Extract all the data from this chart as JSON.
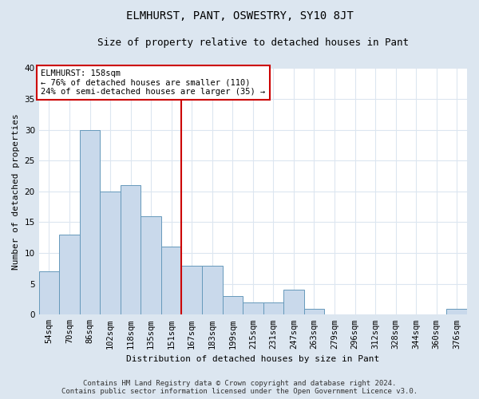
{
  "title": "ELMHURST, PANT, OSWESTRY, SY10 8JT",
  "subtitle": "Size of property relative to detached houses in Pant",
  "xlabel": "Distribution of detached houses by size in Pant",
  "ylabel": "Number of detached properties",
  "footer_line1": "Contains HM Land Registry data © Crown copyright and database right 2024.",
  "footer_line2": "Contains public sector information licensed under the Open Government Licence v3.0.",
  "annotation_title": "ELMHURST: 158sqm",
  "annotation_line2": "← 76% of detached houses are smaller (110)",
  "annotation_line3": "24% of semi-detached houses are larger (35) →",
  "bar_labels": [
    "54sqm",
    "70sqm",
    "86sqm",
    "102sqm",
    "118sqm",
    "135sqm",
    "151sqm",
    "167sqm",
    "183sqm",
    "199sqm",
    "215sqm",
    "231sqm",
    "247sqm",
    "263sqm",
    "279sqm",
    "296sqm",
    "312sqm",
    "328sqm",
    "344sqm",
    "360sqm",
    "376sqm"
  ],
  "bar_values": [
    7,
    13,
    30,
    20,
    21,
    16,
    11,
    8,
    8,
    3,
    2,
    2,
    4,
    1,
    0,
    0,
    0,
    0,
    0,
    0,
    1
  ],
  "bar_color": "#c9d9eb",
  "bar_edge_color": "#6699bb",
  "vline_x": 6.5,
  "vline_color": "#cc0000",
  "ylim": [
    0,
    40
  ],
  "yticks": [
    0,
    5,
    10,
    15,
    20,
    25,
    30,
    35,
    40
  ],
  "outer_bg_color": "#dce6f0",
  "plot_bg_color": "#ffffff",
  "grid_color": "#dce6f0",
  "annotation_box_color": "#ffffff",
  "annotation_border_color": "#cc0000",
  "title_fontsize": 10,
  "subtitle_fontsize": 9,
  "axis_label_fontsize": 8,
  "tick_fontsize": 7.5,
  "footer_fontsize": 6.5,
  "annotation_fontsize": 7.5
}
